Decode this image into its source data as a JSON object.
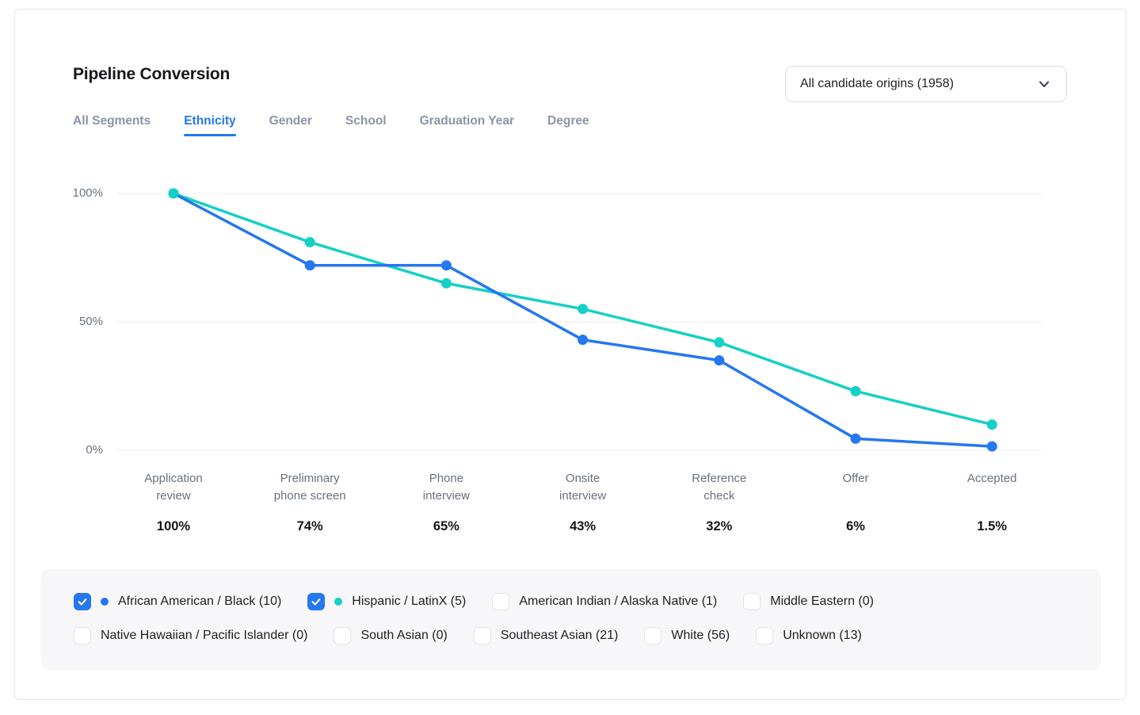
{
  "header": {
    "title": "Pipeline Conversion",
    "origin_filter": {
      "value": "All candidate origins (1958)"
    }
  },
  "tabs": [
    {
      "label": "All Segments",
      "active": false
    },
    {
      "label": "Ethnicity",
      "active": true
    },
    {
      "label": "Gender",
      "active": false
    },
    {
      "label": "School",
      "active": false
    },
    {
      "label": "Graduation Year",
      "active": false
    },
    {
      "label": "Degree",
      "active": false
    }
  ],
  "chart_data": {
    "type": "line",
    "title": "Pipeline Conversion",
    "categories": [
      "Application\nreview",
      "Preliminary\nphone screen",
      "Phone\ninterview",
      "Onsite\ninterview",
      "Reference\ncheck",
      "Offer",
      "Accepted"
    ],
    "stage_conversion_labels": [
      "100%",
      "74%",
      "65%",
      "43%",
      "32%",
      "6%",
      "1.5%"
    ],
    "series": [
      {
        "name": "African American / Black",
        "color": "#2577f2",
        "values": [
          100,
          72,
          72,
          43,
          35,
          4.5,
          1.5
        ]
      },
      {
        "name": "Hispanic / LatinX",
        "color": "#15d0c5",
        "values": [
          100,
          81,
          65,
          55,
          42,
          23,
          10
        ]
      }
    ],
    "yticks": [
      {
        "label": "100%",
        "value": 100
      },
      {
        "label": "50%",
        "value": 50
      },
      {
        "label": "0%",
        "value": 0
      }
    ],
    "ylim": [
      0,
      100
    ],
    "grid": "horizontal",
    "legend_position": "bottom"
  },
  "legend": {
    "rows": [
      [
        {
          "label": "African American / Black (10)",
          "checked": true,
          "dot_color": "#2577f2"
        },
        {
          "label": "Hispanic / LatinX (5)",
          "checked": true,
          "dot_color": "#15d0c5"
        },
        {
          "label": "American Indian / Alaska Native (1)",
          "checked": false
        },
        {
          "label": "Middle Eastern (0)",
          "checked": false
        }
      ],
      [
        {
          "label": "Native Hawaiian / Pacific Islander (0)",
          "checked": false
        },
        {
          "label": "South Asian (0)",
          "checked": false
        },
        {
          "label": "Southeast Asian (21)",
          "checked": false
        },
        {
          "label": "White (56)",
          "checked": false
        },
        {
          "label": "Unknown (13)",
          "checked": false
        }
      ]
    ]
  },
  "colors": {
    "accent_blue": "#2577f2",
    "accent_teal": "#15d0c5",
    "grid_line": "#eaecef",
    "panel_bg": "#f7f7f9"
  }
}
